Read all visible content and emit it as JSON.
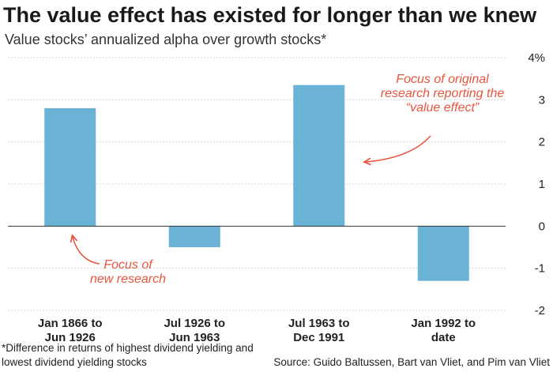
{
  "title": "The value effect has existed for longer than we knew",
  "subtitle": "Value stocks’ annualized alpha over growth stocks*",
  "footnote": "*Difference in returns of highest dividend yielding and lowest dividend yielding stocks",
  "source": "Source: Guido Baltussen, Bart van Vliet, and Pim van Vliet",
  "colors": {
    "bar": "#6ab2d6",
    "annotation": "#e8553e",
    "grid": "#cccccc",
    "zero": "#333333"
  },
  "chart_data": {
    "type": "bar",
    "categories": [
      [
        "Jan 1866 to",
        "Jun 1926"
      ],
      [
        "Jul 1926 to",
        "Jun 1963"
      ],
      [
        "Jul 1963 to",
        "Dec 1991"
      ],
      [
        "Jan 1992 to",
        "date"
      ]
    ],
    "values": [
      2.8,
      -0.5,
      3.35,
      -1.3
    ],
    "ylim": [
      -2,
      4
    ],
    "yticks": [
      -2,
      -1,
      0,
      1,
      2,
      3,
      4
    ],
    "ytick_labels": [
      "-2",
      "-1",
      "0",
      "1",
      "2",
      "3",
      "4%"
    ],
    "grid": true,
    "annotations": [
      {
        "lines": [
          "Focus of original",
          "research reporting the",
          "“value effect”"
        ],
        "points_to": "Jul 1963 to Dec 1991"
      },
      {
        "lines": [
          "Focus of",
          "new research"
        ],
        "points_to": "Jan 1866 to Jun 1926"
      }
    ]
  }
}
